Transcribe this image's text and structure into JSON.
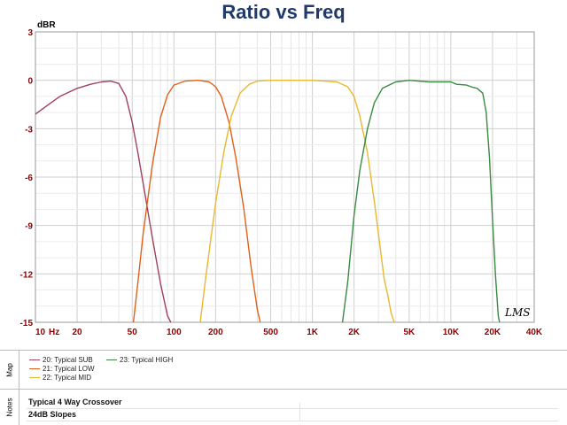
{
  "chart_data": {
    "type": "line",
    "title": "Ratio vs Freq",
    "ylabel": "dBR",
    "xscale": "log",
    "xlim": [
      10,
      40000
    ],
    "ylim": [
      -15,
      3
    ],
    "grid": true,
    "x_ticks": [
      {
        "value": 10,
        "label": "10"
      },
      {
        "value": 20,
        "label": "20"
      },
      {
        "value": 50,
        "label": "50"
      },
      {
        "value": 100,
        "label": "100"
      },
      {
        "value": 200,
        "label": "200"
      },
      {
        "value": 500,
        "label": "500"
      },
      {
        "value": 1000,
        "label": "1K"
      },
      {
        "value": 2000,
        "label": "2K"
      },
      {
        "value": 5000,
        "label": "5K"
      },
      {
        "value": 10000,
        "label": "10K"
      },
      {
        "value": 20000,
        "label": "20K"
      },
      {
        "value": 40000,
        "label": "40K"
      }
    ],
    "x_unit": "Hz",
    "y_ticks": [
      {
        "value": 3,
        "label": "3"
      },
      {
        "value": 0,
        "label": "0"
      },
      {
        "value": -3,
        "label": "-3"
      },
      {
        "value": -6,
        "label": "-6"
      },
      {
        "value": -9,
        "label": "-9"
      },
      {
        "value": -12,
        "label": "-12"
      },
      {
        "value": -15,
        "label": "-15"
      }
    ],
    "series": [
      {
        "name": "20: Typical SUB",
        "color": "#a0405a",
        "points": [
          [
            10,
            -2.1
          ],
          [
            12,
            -1.6
          ],
          [
            15,
            -1.0
          ],
          [
            20,
            -0.5
          ],
          [
            25,
            -0.25
          ],
          [
            30,
            -0.1
          ],
          [
            35,
            -0.05
          ],
          [
            40,
            -0.2
          ],
          [
            45,
            -1.0
          ],
          [
            50,
            -2.6
          ],
          [
            55,
            -4.5
          ],
          [
            60,
            -6.4
          ],
          [
            70,
            -9.8
          ],
          [
            80,
            -12.6
          ],
          [
            90,
            -14.6
          ],
          [
            95,
            -15
          ]
        ]
      },
      {
        "name": "21: Typical LOW",
        "color": "#e0601a",
        "points": [
          [
            51,
            -15
          ],
          [
            55,
            -12.5
          ],
          [
            60,
            -9.5
          ],
          [
            70,
            -5.2
          ],
          [
            80,
            -2.3
          ],
          [
            90,
            -0.9
          ],
          [
            100,
            -0.3
          ],
          [
            120,
            -0.05
          ],
          [
            150,
            0
          ],
          [
            180,
            -0.1
          ],
          [
            200,
            -0.4
          ],
          [
            220,
            -1.0
          ],
          [
            250,
            -2.6
          ],
          [
            280,
            -4.8
          ],
          [
            320,
            -8.0
          ],
          [
            360,
            -11.5
          ],
          [
            400,
            -14.2
          ],
          [
            420,
            -15
          ]
        ]
      },
      {
        "name": "22: Typical MID",
        "color": "#e8b830",
        "points": [
          [
            155,
            -15
          ],
          [
            170,
            -12.2
          ],
          [
            200,
            -7.6
          ],
          [
            230,
            -4.4
          ],
          [
            260,
            -2.2
          ],
          [
            300,
            -0.8
          ],
          [
            350,
            -0.25
          ],
          [
            400,
            -0.05
          ],
          [
            500,
            0
          ],
          [
            1000,
            0
          ],
          [
            1500,
            -0.1
          ],
          [
            1800,
            -0.4
          ],
          [
            2000,
            -1.0
          ],
          [
            2200,
            -2.2
          ],
          [
            2500,
            -4.5
          ],
          [
            2800,
            -7.5
          ],
          [
            3100,
            -10.5
          ],
          [
            3300,
            -12.3
          ],
          [
            3500,
            -13.3
          ],
          [
            3700,
            -14.4
          ],
          [
            3900,
            -15
          ]
        ]
      },
      {
        "name": "23: Typical HIGH",
        "color": "#3a8a40",
        "points": [
          [
            1650,
            -15
          ],
          [
            1800,
            -12.5
          ],
          [
            2000,
            -8.4
          ],
          [
            2200,
            -5.6
          ],
          [
            2500,
            -3.0
          ],
          [
            2800,
            -1.4
          ],
          [
            3200,
            -0.5
          ],
          [
            4000,
            -0.1
          ],
          [
            5000,
            0
          ],
          [
            7000,
            -0.1
          ],
          [
            10000,
            -0.1
          ],
          [
            11000,
            -0.25
          ],
          [
            13000,
            -0.3
          ],
          [
            14000,
            -0.4
          ],
          [
            15500,
            -0.5
          ],
          [
            17000,
            -0.8
          ],
          [
            18000,
            -2.0
          ],
          [
            19000,
            -4.8
          ],
          [
            20000,
            -8.6
          ],
          [
            21000,
            -12.1
          ],
          [
            22000,
            -14.6
          ],
          [
            22500,
            -15
          ]
        ]
      }
    ]
  },
  "watermark": "LMS",
  "legend": {
    "label": "Map",
    "items": [
      {
        "text": "20: Typical SUB",
        "color": "#a0405a"
      },
      {
        "text": "21: Typical LOW",
        "color": "#e0601a"
      },
      {
        "text": "22: Typical MID",
        "color": "#e8b830"
      },
      {
        "text": "23: Typical HIGH",
        "color": "#3a8a40"
      }
    ]
  },
  "notes": {
    "label": "Notes",
    "line1": "Typical 4 Way Crossover",
    "line2": "24dB Slopes"
  }
}
